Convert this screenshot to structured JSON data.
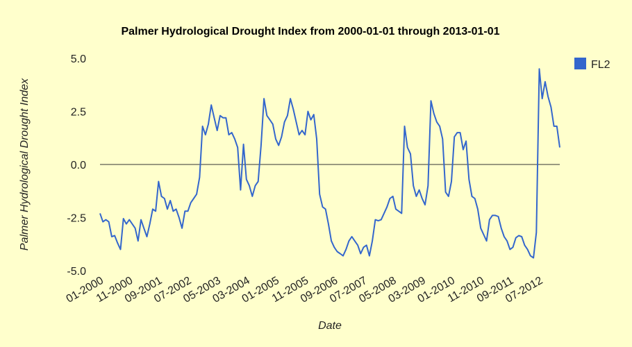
{
  "chart_data": {
    "type": "line",
    "title": "Palmer Hydrological Drought Index from 2000-01-01 through 2013-01-01",
    "xlabel": "Date",
    "ylabel": "Palmer Hydrological Drought Index",
    "ylim": [
      -5.0,
      5.0
    ],
    "yticks": [
      "5.0",
      "2.5",
      "0.0",
      "-2.5",
      "-5.0"
    ],
    "ytick_values": [
      5.0,
      2.5,
      0.0,
      -2.5,
      -5.0
    ],
    "xtick_labels": [
      "01-2000",
      "11-2000",
      "09-2001",
      "07-2002",
      "05-2003",
      "03-2004",
      "01-2005",
      "11-2005",
      "09-2006",
      "07-2007",
      "05-2008",
      "03-2009",
      "01-2010",
      "11-2010",
      "09-2011",
      "07-2012"
    ],
    "gridlines": false,
    "zero_line": true,
    "legend_position": "right",
    "color": "#3366cc",
    "series": [
      {
        "name": "FL2",
        "values": [
          -2.3,
          -2.7,
          -2.6,
          -2.7,
          -3.4,
          -3.35,
          -3.7,
          -4.0,
          -2.55,
          -2.8,
          -2.6,
          -2.8,
          -3.0,
          -3.6,
          -2.6,
          -3.0,
          -3.4,
          -2.8,
          -2.1,
          -2.2,
          -0.8,
          -1.5,
          -1.6,
          -2.1,
          -1.7,
          -2.2,
          -2.1,
          -2.5,
          -3.0,
          -2.2,
          -2.2,
          -1.8,
          -1.6,
          -1.4,
          -0.6,
          1.8,
          1.4,
          1.9,
          2.8,
          2.2,
          1.6,
          2.3,
          2.2,
          2.2,
          1.4,
          1.5,
          1.2,
          0.8,
          -1.2,
          0.95,
          -0.7,
          -1.0,
          -1.5,
          -1.0,
          -0.8,
          0.9,
          3.1,
          2.3,
          2.1,
          1.9,
          1.2,
          0.9,
          1.3,
          2.0,
          2.3,
          3.1,
          2.6,
          2.0,
          1.4,
          1.6,
          1.4,
          2.5,
          2.1,
          2.35,
          1.2,
          -1.4,
          -2.0,
          -2.1,
          -2.8,
          -3.6,
          -3.9,
          -4.1,
          -4.2,
          -4.3,
          -4.0,
          -3.6,
          -3.4,
          -3.6,
          -3.8,
          -4.2,
          -3.9,
          -3.8,
          -4.3,
          -3.6,
          -2.6,
          -2.65,
          -2.6,
          -2.3,
          -2.0,
          -1.6,
          -1.5,
          -2.1,
          -2.2,
          -2.3,
          1.8,
          0.8,
          0.5,
          -1.0,
          -1.5,
          -1.2,
          -1.6,
          -1.9,
          -1.0,
          3.0,
          2.4,
          2.0,
          1.8,
          1.2,
          -1.3,
          -1.5,
          -0.8,
          1.3,
          1.5,
          1.5,
          0.7,
          1.1,
          -0.7,
          -1.5,
          -1.6,
          -2.1,
          -3.0,
          -3.3,
          -3.6,
          -2.6,
          -2.4,
          -2.4,
          -2.45,
          -3.0,
          -3.4,
          -3.6,
          -4.0,
          -3.9,
          -3.45,
          -3.35,
          -3.4,
          -3.8,
          -4.0,
          -4.3,
          -4.4,
          -3.2,
          4.5,
          3.1,
          3.9,
          3.2,
          2.7,
          1.8,
          1.8,
          0.8
        ]
      }
    ]
  },
  "legend": {
    "label": "FL2"
  }
}
